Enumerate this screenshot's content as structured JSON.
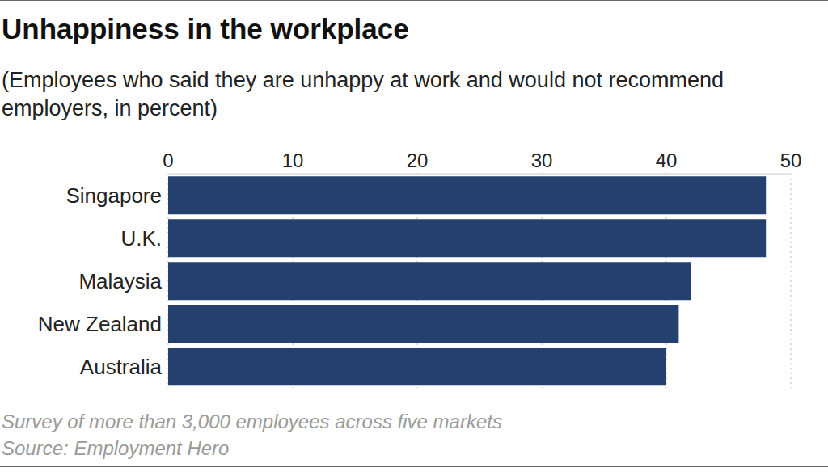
{
  "chart_data": {
    "type": "bar",
    "title": "Unhappiness in the workplace",
    "subtitle": "(Employees who said they are unhappy at work and would not recommend employers, in percent)",
    "annotations": [
      "Survey of more than 3,000 employees across five markets",
      "Source: Employment Hero"
    ],
    "categories": [
      "Singapore",
      "U.K.",
      "Malaysia",
      "New Zealand",
      "Australia"
    ],
    "values": [
      48,
      48,
      42,
      41,
      40
    ],
    "color": "#24406e",
    "orientation": "horizontal",
    "xlim": [
      0,
      50
    ],
    "xticks": [
      0,
      10,
      20,
      30,
      40,
      50
    ],
    "grid": true
  }
}
